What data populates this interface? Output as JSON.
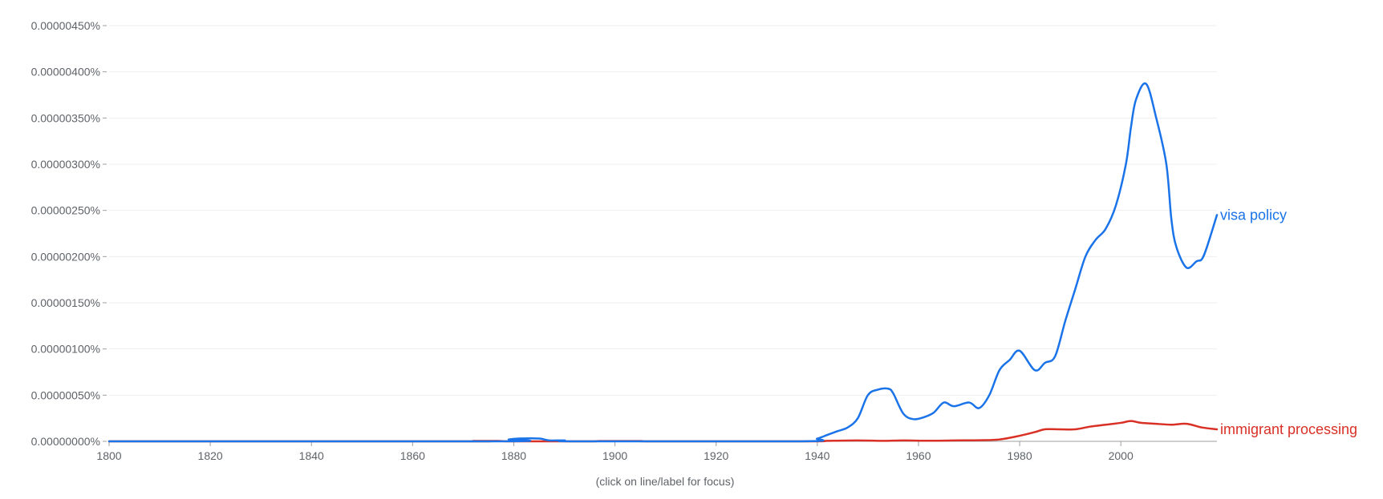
{
  "chart_data": {
    "type": "line",
    "xlim": [
      1800,
      2019
    ],
    "ylim": [
      0,
      4.5e-06
    ],
    "x_ticks": [
      1800,
      1820,
      1840,
      1860,
      1880,
      1900,
      1920,
      1940,
      1960,
      1980,
      2000
    ],
    "y_ticks": [
      "0.00000000%",
      "0.00000050%",
      "0.00000100%",
      "0.00000150%",
      "0.00000200%",
      "0.00000250%",
      "0.00000300%",
      "0.00000350%",
      "0.00000400%",
      "0.00000450%"
    ],
    "y_tick_values": [
      0,
      5e-07,
      1e-06,
      1.5e-06,
      2e-06,
      2.5e-06,
      3e-06,
      3.5e-06,
      4e-06,
      4.5e-06
    ],
    "grid": true,
    "series": [
      {
        "name": "visa policy",
        "color": "#1a73e8",
        "points": [
          [
            1800,
            0
          ],
          [
            1877,
            0
          ],
          [
            1879,
            2e-08
          ],
          [
            1881,
            3e-08
          ],
          [
            1885,
            3e-08
          ],
          [
            1887,
            1e-08
          ],
          [
            1890,
            1e-08
          ],
          [
            1893,
            0
          ],
          [
            1937,
            0
          ],
          [
            1940,
            3e-08
          ],
          [
            1942,
            7e-08
          ],
          [
            1944,
            1.1e-07
          ],
          [
            1946,
            1.5e-07
          ],
          [
            1948,
            2.5e-07
          ],
          [
            1950,
            5e-07
          ],
          [
            1952,
            5.6e-07
          ],
          [
            1954,
            5.7e-07
          ],
          [
            1955,
            5.2e-07
          ],
          [
            1957,
            3e-07
          ],
          [
            1959,
            2.4e-07
          ],
          [
            1961,
            2.6e-07
          ],
          [
            1963,
            3.1e-07
          ],
          [
            1965,
            4.2e-07
          ],
          [
            1967,
            3.8e-07
          ],
          [
            1970,
            4.2e-07
          ],
          [
            1972,
            3.6e-07
          ],
          [
            1974,
            5e-07
          ],
          [
            1976,
            7.7e-07
          ],
          [
            1978,
            8.8e-07
          ],
          [
            1980,
            9.8e-07
          ],
          [
            1983,
            7.7e-07
          ],
          [
            1985,
            8.5e-07
          ],
          [
            1987,
            9.2e-07
          ],
          [
            1989,
            1.3e-06
          ],
          [
            1991,
            1.65e-06
          ],
          [
            1993,
            2e-06
          ],
          [
            1995,
            2.18e-06
          ],
          [
            1997,
            2.3e-06
          ],
          [
            1999,
            2.55e-06
          ],
          [
            2001,
            3e-06
          ],
          [
            2002,
            3.4e-06
          ],
          [
            2003,
            3.7e-06
          ],
          [
            2005,
            3.87e-06
          ],
          [
            2007,
            3.5e-06
          ],
          [
            2009,
            3e-06
          ],
          [
            2010,
            2.4e-06
          ],
          [
            2011,
            2.1e-06
          ],
          [
            2013,
            1.88e-06
          ],
          [
            2015,
            1.95e-06
          ],
          [
            2016,
            1.97e-06
          ],
          [
            2017,
            2.1e-06
          ],
          [
            2019,
            2.45e-06
          ]
        ]
      },
      {
        "name": "immigrant processing",
        "color": "#d93025",
        "points": [
          [
            1800,
            0
          ],
          [
            1870,
            0
          ],
          [
            1872,
            4e-09
          ],
          [
            1877,
            4e-09
          ],
          [
            1880,
            0
          ],
          [
            1895,
            0
          ],
          [
            1897,
            3e-09
          ],
          [
            1905,
            3e-09
          ],
          [
            1908,
            0
          ],
          [
            1938,
            0
          ],
          [
            1942,
            5e-09
          ],
          [
            1948,
            1e-08
          ],
          [
            1953,
            5e-09
          ],
          [
            1957,
            1e-08
          ],
          [
            1962,
            6e-09
          ],
          [
            1967,
            1e-08
          ],
          [
            1972,
            1.2e-08
          ],
          [
            1976,
            2e-08
          ],
          [
            1980,
            6e-08
          ],
          [
            1983,
            1e-07
          ],
          [
            1985,
            1.3e-07
          ],
          [
            1988,
            1.3e-07
          ],
          [
            1991,
            1.3e-07
          ],
          [
            1994,
            1.6e-07
          ],
          [
            1997,
            1.8e-07
          ],
          [
            2000,
            2e-07
          ],
          [
            2002,
            2.2e-07
          ],
          [
            2004,
            2e-07
          ],
          [
            2007,
            1.9e-07
          ],
          [
            2010,
            1.8e-07
          ],
          [
            2013,
            1.9e-07
          ],
          [
            2016,
            1.5e-07
          ],
          [
            2019,
            1.3e-07
          ]
        ]
      }
    ]
  },
  "footnote": "(click on line/label for focus)"
}
